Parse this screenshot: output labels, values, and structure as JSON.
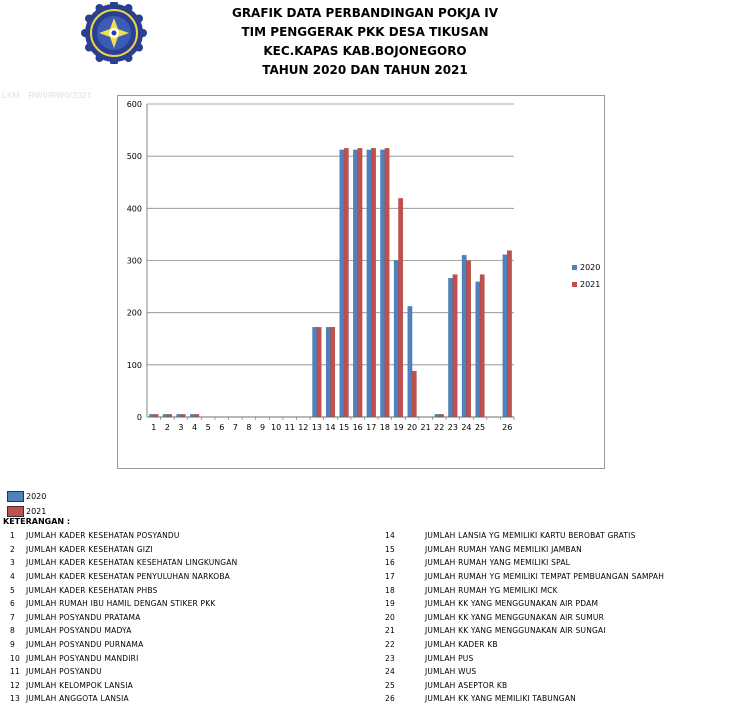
{
  "title": {
    "lines": [
      "GRAFIK DATA PERBANDINGAN POKJA IV",
      "TIM PENGGERAK PKK DESA TIKUSAN",
      "KEC.KAPAS KAB.BOJONEGORO",
      "TAHUN 2020 DAN TAHUN 2021"
    ]
  },
  "faint_text": "LKM · RW0/RW0/2021",
  "colors": {
    "series_2020": "#4f81bd",
    "series_2021": "#c0504d",
    "grid": "#8c8c8c",
    "frame": "#9a9a9a"
  },
  "logo": {
    "icon": "pkk-logo-icon"
  },
  "chart_data": {
    "type": "bar",
    "categories": [
      "1",
      "2",
      "3",
      "4",
      "5",
      "6",
      "7",
      "8",
      "9",
      "10",
      "11",
      "12",
      "13",
      "14",
      "15",
      "16",
      "17",
      "18",
      "19",
      "20",
      "21",
      "22",
      "23",
      "24",
      "25",
      "",
      "26"
    ],
    "series": [
      {
        "name": "2020",
        "values": [
          5,
          5,
          5,
          5,
          0,
          0,
          0,
          0,
          0,
          0,
          0,
          0,
          172,
          172,
          512,
          512,
          512,
          512,
          300,
          212,
          0,
          5,
          266,
          310,
          259,
          0,
          311
        ]
      },
      {
        "name": "2021",
        "values": [
          5,
          5,
          5,
          5,
          0,
          0,
          0,
          0,
          0,
          0,
          0,
          0,
          172,
          172,
          515,
          515,
          515,
          515,
          419,
          88,
          0,
          5,
          273,
          300,
          273,
          0,
          319
        ]
      }
    ],
    "ylim": [
      0,
      600
    ],
    "yticks": [
      "0",
      "100",
      "200",
      "300",
      "400",
      "500",
      "600"
    ],
    "grid": true,
    "legend_position": "right"
  },
  "bottom_legend": [
    {
      "label": "2020"
    },
    {
      "label": "2021"
    }
  ],
  "keterangan": {
    "title": "KETERANGAN :",
    "left": [
      {
        "num": "1",
        "text": "JUMLAH KADER KESEHATAN POSYANDU"
      },
      {
        "num": "2",
        "text": "JUMLAH KADER KESEHATAN GIZI"
      },
      {
        "num": "3",
        "text": "JUMLAH KADER KESEHATAN KESEHATAN LINGKUNGAN"
      },
      {
        "num": "4",
        "text": "JUMLAH KADER KESEHATAN PENYULUHAN NARKOBA"
      },
      {
        "num": "5",
        "text": "JUMLAH KADER KESEHATAN PHBS"
      },
      {
        "num": "6",
        "text": "JUMLAH RUMAH IBU HAMIL DENGAN STIKER PKK"
      },
      {
        "num": "7",
        "text": "JUMLAH POSYANDU PRATAMA"
      },
      {
        "num": "8",
        "text": "JUMLAH POSYANDU MADYA"
      },
      {
        "num": "9",
        "text": "JUMLAH POSYANDU PURNAMA"
      },
      {
        "num": "10",
        "text": "JUMLAH POSYANDU MANDIRI"
      },
      {
        "num": "11",
        "text": "JUMLAH POSYANDU"
      },
      {
        "num": "12",
        "text": "JUMLAH KELOMPOK LANSIA"
      },
      {
        "num": "13",
        "text": "JUMLAH ANGGOTA LANSIA"
      }
    ],
    "right": [
      {
        "num": "14",
        "text": "JUMLAH LANSIA YG MEMILIKI KARTU BEROBAT GRATIS"
      },
      {
        "num": "15",
        "text": "JUMLAH RUMAH YANG MEMILIKI JAMBAN"
      },
      {
        "num": "16",
        "text": "JUMLAH RUMAH YANG MEMILIKI SPAL"
      },
      {
        "num": "17",
        "text": "JUMLAH RUMAH YG MEMILIKI TEMPAT PEMBUANGAN SAMPAH"
      },
      {
        "num": "18",
        "text": "JUMLAH RUMAH YG MEMILIKI MCK"
      },
      {
        "num": "19",
        "text": "JUMLAH KK YANG MENGGUNAKAN AIR PDAM"
      },
      {
        "num": "20",
        "text": "JUMLAH KK YANG MENGGUNAKAN AIR SUMUR"
      },
      {
        "num": "21",
        "text": "JUMLAH KK YANG MENGGUNAKAN AIR SUNGAI"
      },
      {
        "num": "22",
        "text": "JUMLAH KADER KB"
      },
      {
        "num": "23",
        "text": "JUMLAH PUS"
      },
      {
        "num": "24",
        "text": "JUMLAH WUS"
      },
      {
        "num": "25",
        "text": "JUMLAH ASEPTOR KB"
      },
      {
        "num": "26",
        "text": "JUMLAH KK YANG MEMILIKI TABUNGAN"
      }
    ]
  }
}
